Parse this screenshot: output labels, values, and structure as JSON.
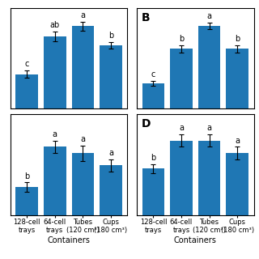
{
  "chart_data": [
    {
      "type": "bar",
      "categories": [
        "128-cell\ntrays",
        "64-cell\ntrays",
        "Tubes\n(120 cm³)",
        "Cups\n(180 cm³)"
      ],
      "values": [
        0.3,
        0.63,
        0.72,
        0.55
      ],
      "errors": [
        0.03,
        0.04,
        0.04,
        0.03
      ],
      "annotations": [
        "c",
        "ab",
        "a",
        "b"
      ],
      "ylim": [
        0,
        0.88
      ],
      "tick_labels": false
    },
    {
      "type": "bar",
      "title": "B",
      "categories": [
        "128-cell\ntrays",
        "64-cell\ntrays",
        "Tubes\n(120 cm³)",
        "Cups\n(180 cm³)"
      ],
      "values": [
        0.22,
        0.52,
        0.72,
        0.52
      ],
      "errors": [
        0.02,
        0.03,
        0.03,
        0.03
      ],
      "annotations": [
        "c",
        "b",
        "a",
        "b"
      ],
      "ylim": [
        0,
        0.88
      ],
      "tick_labels": false
    },
    {
      "type": "bar",
      "categories": [
        "128-cell\ntrays",
        "64-cell\ntrays",
        "Tubes\n(120 cm³)",
        "Cups\n(180 cm³)"
      ],
      "values": [
        0.18,
        0.44,
        0.4,
        0.32
      ],
      "errors": [
        0.03,
        0.04,
        0.05,
        0.04
      ],
      "annotations": [
        "b",
        "a",
        "a",
        "a"
      ],
      "ylim": [
        0,
        0.65
      ],
      "x_label": "Containers",
      "tick_labels": "x"
    },
    {
      "type": "bar",
      "title": "D",
      "categories": [
        "128-cell\ntrays",
        "64-cell\ntrays",
        "Tubes\n(120 cm³)",
        "Cups\n(180 cm³)"
      ],
      "values": [
        0.3,
        0.48,
        0.48,
        0.4
      ],
      "errors": [
        0.03,
        0.04,
        0.04,
        0.04
      ],
      "annotations": [
        "b",
        "a",
        "a",
        "a"
      ],
      "ylim": [
        0,
        0.65
      ],
      "x_label": "Containers",
      "tick_labels": "x"
    }
  ]
}
